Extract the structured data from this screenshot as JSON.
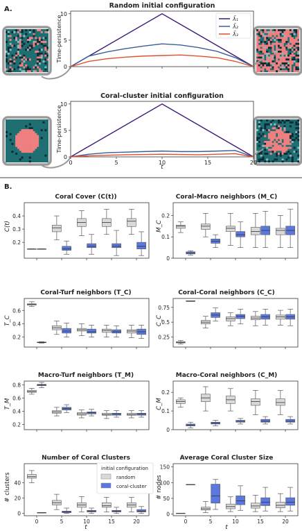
{
  "panel_labels": {
    "A": "A.",
    "B": "B."
  },
  "colors": {
    "lambda1": "#3b1a78",
    "lambda2": "#3a5d9c",
    "lambda3": "#e0512b",
    "random_box": "#d9d9d9",
    "cluster_box": "#5a78e0",
    "grid_bg": "#1e6e72",
    "coral": "#f08080",
    "frame": "#9a9a9a"
  },
  "chart_data": [
    {
      "type": "line",
      "title": "Random initial configuration",
      "ylabel": "Time-persistence",
      "xlim": [
        0,
        20
      ],
      "ylim": [
        0,
        10.5
      ],
      "yticks": [
        0,
        5,
        10
      ],
      "legend": "top-right",
      "series": [
        {
          "name": "λ̄₁",
          "x": [
            0,
            10,
            20
          ],
          "y": [
            0,
            10,
            0
          ]
        },
        {
          "name": "λ̄₂",
          "x": [
            0,
            2,
            4,
            6,
            8,
            10,
            12,
            14,
            16,
            18,
            20
          ],
          "y": [
            0,
            2.0,
            2.8,
            3.4,
            3.9,
            4.3,
            4.1,
            3.6,
            2.9,
            1.7,
            0
          ]
        },
        {
          "name": "λ̄₃",
          "x": [
            0,
            2,
            4,
            6,
            8,
            10,
            12,
            14,
            16,
            18,
            20
          ],
          "y": [
            0,
            1.0,
            1.5,
            1.8,
            2.0,
            2.1,
            2.2,
            2.0,
            1.7,
            1.0,
            0
          ]
        }
      ]
    },
    {
      "type": "line",
      "title": "Coral-cluster initial configuration",
      "ylabel": "Time-persistence",
      "xlabel": "t",
      "xlim": [
        0,
        20
      ],
      "ylim": [
        0,
        10.5
      ],
      "yticks": [
        0,
        5,
        10
      ],
      "xticks": [
        0,
        5,
        10,
        15,
        20
      ],
      "series": [
        {
          "name": "λ̄₁",
          "x": [
            0,
            10,
            20
          ],
          "y": [
            0,
            10,
            0
          ]
        },
        {
          "name": "λ̄₂",
          "x": [
            0,
            2,
            4,
            6,
            8,
            10,
            12,
            14,
            16,
            18,
            20
          ],
          "y": [
            0,
            0.5,
            0.8,
            0.9,
            1.0,
            1.1,
            1.0,
            1.0,
            1.1,
            1.2,
            0
          ]
        },
        {
          "name": "λ̄₃",
          "x": [
            0,
            2,
            4,
            6,
            8,
            10,
            12,
            14,
            16,
            18,
            20
          ],
          "y": [
            0,
            0.2,
            0.3,
            0.4,
            0.45,
            0.5,
            0.45,
            0.4,
            0.5,
            0.6,
            0
          ]
        }
      ]
    },
    {
      "type": "box",
      "title": "Coral Cover (C(t))",
      "ylabel": "C(t)",
      "ylim": [
        0.08,
        0.5
      ],
      "yticks": [
        0.2,
        0.3,
        0.4
      ],
      "xticks": [
        0,
        5,
        10,
        15,
        20
      ],
      "random": [
        [
          0.15,
          0.15,
          0.15,
          0.15,
          0.15
        ],
        [
          0.22,
          0.28,
          0.31,
          0.33,
          0.4
        ],
        [
          0.25,
          0.32,
          0.35,
          0.38,
          0.44
        ],
        [
          0.26,
          0.32,
          0.35,
          0.38,
          0.45
        ],
        [
          0.26,
          0.32,
          0.36,
          0.38,
          0.45
        ]
      ],
      "cluster": [
        [
          0.15,
          0.15,
          0.15,
          0.15,
          0.15
        ],
        [
          0.11,
          0.14,
          0.15,
          0.17,
          0.21
        ],
        [
          0.11,
          0.16,
          0.17,
          0.19,
          0.26
        ],
        [
          0.1,
          0.16,
          0.17,
          0.19,
          0.29
        ],
        [
          0.1,
          0.15,
          0.17,
          0.2,
          0.28
        ]
      ]
    },
    {
      "type": "box",
      "title": "Coral-Macro neighbors (M_C)",
      "ylabel": "M_C",
      "ylim": [
        0.0,
        0.26
      ],
      "yticks": [
        0.0,
        0.1,
        0.2
      ],
      "xticks": [
        0,
        5,
        10,
        15,
        20
      ],
      "random": [
        [
          0.12,
          0.14,
          0.15,
          0.155,
          0.17
        ],
        [
          0.1,
          0.135,
          0.15,
          0.16,
          0.21
        ],
        [
          0.06,
          0.125,
          0.14,
          0.15,
          0.21
        ],
        [
          0.05,
          0.11,
          0.125,
          0.145,
          0.21
        ],
        [
          0.05,
          0.11,
          0.13,
          0.14,
          0.2
        ]
      ],
      "cluster": [
        [
          0.015,
          0.02,
          0.025,
          0.03,
          0.035
        ],
        [
          0.05,
          0.07,
          0.08,
          0.09,
          0.11
        ],
        [
          0.05,
          0.1,
          0.11,
          0.125,
          0.17
        ],
        [
          0.05,
          0.11,
          0.13,
          0.15,
          0.22
        ],
        [
          0.05,
          0.11,
          0.13,
          0.15,
          0.23
        ]
      ]
    },
    {
      "type": "box",
      "title": "Coral-Turf neighbors (T_C)",
      "ylabel": "T_C",
      "ylim": [
        0.05,
        0.78
      ],
      "yticks": [
        0.2,
        0.4,
        0.6
      ],
      "xticks": [
        0,
        5,
        10,
        15,
        20
      ],
      "random": [
        [
          0.66,
          0.68,
          0.69,
          0.7,
          0.73
        ],
        [
          0.24,
          0.31,
          0.34,
          0.37,
          0.44
        ],
        [
          0.22,
          0.29,
          0.31,
          0.33,
          0.4
        ],
        [
          0.2,
          0.27,
          0.3,
          0.32,
          0.38
        ],
        [
          0.19,
          0.26,
          0.29,
          0.31,
          0.38
        ]
      ],
      "cluster": [
        [
          0.11,
          0.115,
          0.12,
          0.125,
          0.13
        ],
        [
          0.2,
          0.26,
          0.29,
          0.33,
          0.41
        ],
        [
          0.2,
          0.26,
          0.28,
          0.32,
          0.38
        ],
        [
          0.2,
          0.26,
          0.28,
          0.31,
          0.37
        ],
        [
          0.18,
          0.24,
          0.28,
          0.32,
          0.38
        ]
      ]
    },
    {
      "type": "box",
      "title": "Coral-Coral neighbors (C_C)",
      "ylabel": "C_C",
      "ylim": [
        0.08,
        0.9
      ],
      "yticks": [
        0.25,
        0.5,
        0.75
      ],
      "xticks": [
        0,
        5,
        10,
        15,
        20
      ],
      "random": [
        [
          0.13,
          0.15,
          0.16,
          0.17,
          0.19
        ],
        [
          0.4,
          0.47,
          0.5,
          0.53,
          0.6
        ],
        [
          0.44,
          0.52,
          0.56,
          0.59,
          0.66
        ],
        [
          0.44,
          0.54,
          0.57,
          0.6,
          0.68
        ],
        [
          0.45,
          0.55,
          0.59,
          0.62,
          0.7
        ]
      ],
      "cluster": [
        [
          0.85,
          0.85,
          0.86,
          0.86,
          0.86
        ],
        [
          0.52,
          0.58,
          0.62,
          0.66,
          0.74
        ],
        [
          0.47,
          0.56,
          0.6,
          0.63,
          0.72
        ],
        [
          0.45,
          0.55,
          0.59,
          0.63,
          0.72
        ],
        [
          0.44,
          0.55,
          0.59,
          0.63,
          0.72
        ]
      ]
    },
    {
      "type": "box",
      "title": "Macro-Turf neighbors (T_M)",
      "ylabel": "T_M",
      "ylim": [
        0.12,
        0.86
      ],
      "yticks": [
        0.2,
        0.4,
        0.6,
        0.8
      ],
      "xticks": [
        0,
        5,
        10,
        15,
        20
      ],
      "random": [
        [
          0.66,
          0.69,
          0.7,
          0.72,
          0.75
        ],
        [
          0.33,
          0.37,
          0.39,
          0.41,
          0.46
        ],
        [
          0.3,
          0.34,
          0.36,
          0.38,
          0.42
        ],
        [
          0.29,
          0.34,
          0.35,
          0.37,
          0.41
        ],
        [
          0.3,
          0.34,
          0.35,
          0.37,
          0.41
        ]
      ],
      "cluster": [
        [
          0.76,
          0.79,
          0.8,
          0.81,
          0.84
        ],
        [
          0.38,
          0.42,
          0.44,
          0.46,
          0.5
        ],
        [
          0.33,
          0.36,
          0.38,
          0.39,
          0.43
        ],
        [
          0.31,
          0.34,
          0.36,
          0.37,
          0.41
        ],
        [
          0.31,
          0.34,
          0.36,
          0.37,
          0.41
        ]
      ]
    },
    {
      "type": "box",
      "title": "Macro-Coral neighbors (C_M)",
      "ylabel": "C_M",
      "ylim": [
        0.0,
        0.26
      ],
      "yticks": [
        0.0,
        0.1,
        0.2
      ],
      "xticks": [
        0,
        5,
        10,
        15,
        20
      ],
      "random": [
        [
          0.12,
          0.14,
          0.15,
          0.16,
          0.17
        ],
        [
          0.1,
          0.15,
          0.17,
          0.19,
          0.23
        ],
        [
          0.1,
          0.14,
          0.16,
          0.18,
          0.22
        ],
        [
          0.08,
          0.13,
          0.15,
          0.165,
          0.21
        ],
        [
          0.08,
          0.13,
          0.145,
          0.165,
          0.21
        ]
      ],
      "cluster": [
        [
          0.01,
          0.02,
          0.025,
          0.03,
          0.04
        ],
        [
          0.02,
          0.03,
          0.035,
          0.04,
          0.05
        ],
        [
          0.03,
          0.04,
          0.045,
          0.05,
          0.06
        ],
        [
          0.03,
          0.04,
          0.045,
          0.055,
          0.07
        ],
        [
          0.03,
          0.04,
          0.045,
          0.055,
          0.07
        ]
      ]
    },
    {
      "type": "box",
      "title": "Number of Coral Clusters",
      "ylabel": "# clusters",
      "xlabel": "t",
      "ylim": [
        -3,
        65
      ],
      "yticks": [
        0,
        20,
        40
      ],
      "xticks": [
        0,
        5,
        10,
        15,
        20
      ],
      "legend_title": "initial configuration",
      "legend": [
        "random",
        "coral-cluster"
      ],
      "random": [
        [
          40,
          46,
          48,
          51,
          56
        ],
        [
          5,
          11,
          14,
          17,
          25
        ],
        [
          2,
          8,
          11,
          14,
          22
        ],
        [
          2,
          8,
          10,
          14,
          21
        ],
        [
          2,
          8,
          11,
          14,
          21
        ]
      ],
      "cluster": [
        [
          1,
          1,
          1,
          1,
          1
        ],
        [
          0,
          1,
          2,
          3,
          7
        ],
        [
          0,
          2,
          3,
          4,
          7
        ],
        [
          0,
          2,
          3,
          4,
          8
        ],
        [
          0,
          2,
          3,
          5,
          9
        ]
      ]
    },
    {
      "type": "box",
      "title": "Average Coral Cluster Size",
      "ylabel": "# nodes",
      "xlabel": "t",
      "ylim": [
        -5,
        160
      ],
      "yticks": [
        0,
        50,
        100,
        150
      ],
      "xticks": [
        0,
        5,
        10,
        15,
        20
      ],
      "random": [
        [
          3,
          3,
          3,
          3,
          3
        ],
        [
          5,
          13,
          17,
          22,
          40
        ],
        [
          8,
          17,
          24,
          32,
          55
        ],
        [
          8,
          19,
          26,
          35,
          60
        ],
        [
          8,
          20,
          28,
          38,
          65
        ]
      ],
      "cluster": [
        [
          94,
          94,
          94,
          94,
          94
        ],
        [
          15,
          35,
          58,
          95,
          110
        ],
        [
          12,
          30,
          42,
          58,
          90
        ],
        [
          10,
          27,
          38,
          52,
          85
        ],
        [
          10,
          28,
          38,
          52,
          85
        ]
      ]
    }
  ]
}
